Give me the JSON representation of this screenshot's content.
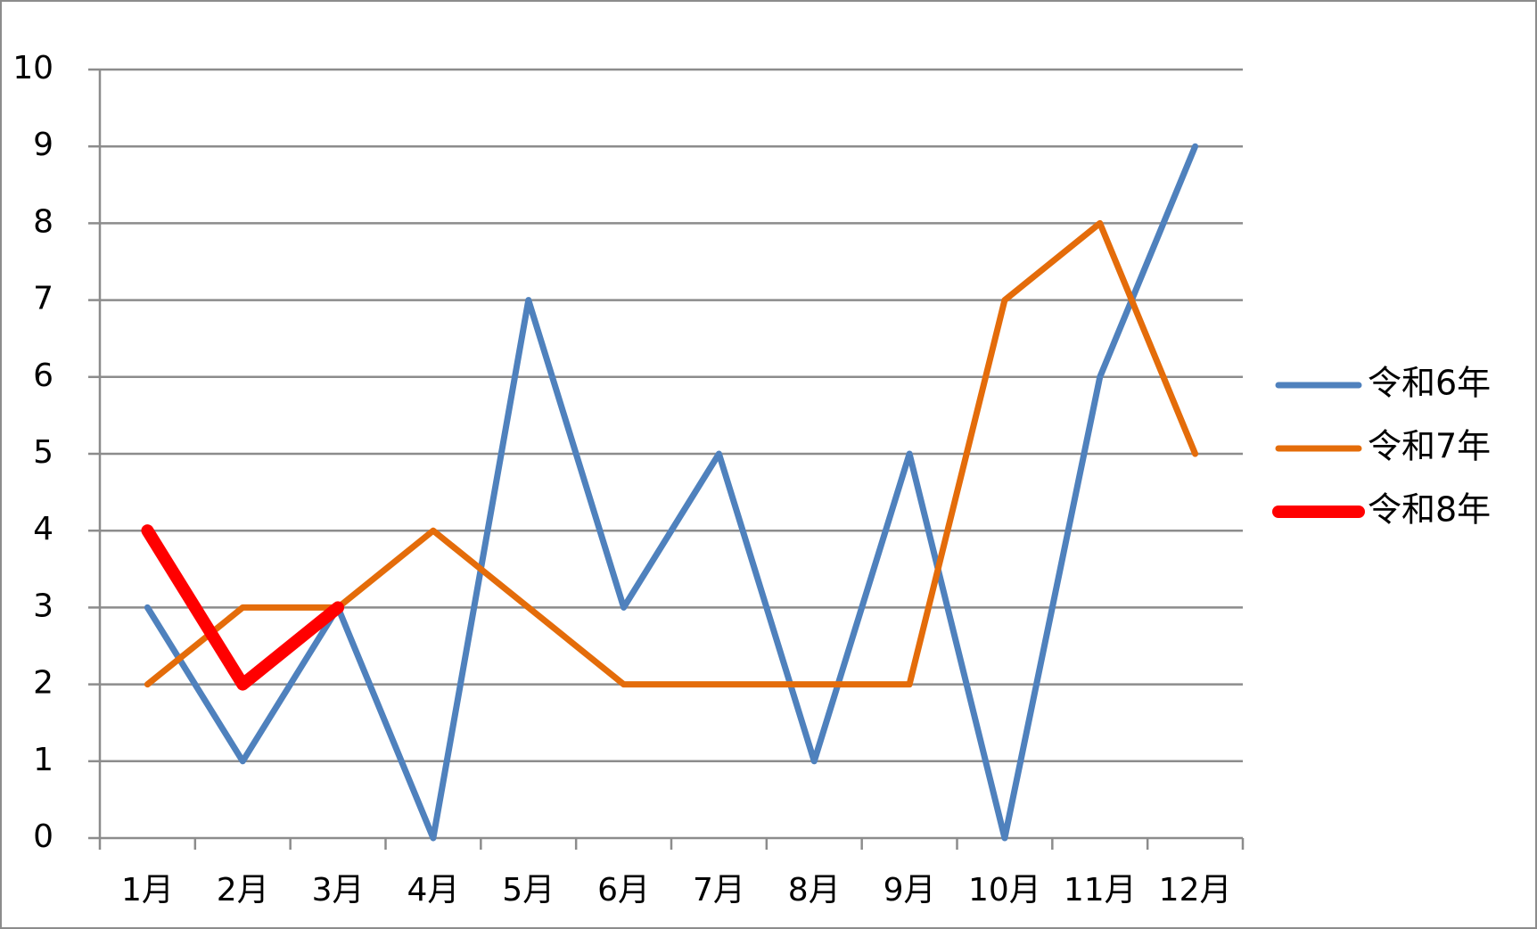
{
  "chart_data": {
    "type": "line",
    "categories": [
      "1月",
      "2月",
      "3月",
      "4月",
      "5月",
      "6月",
      "7月",
      "8月",
      "9月",
      "10月",
      "11月",
      "12月"
    ],
    "series": [
      {
        "name": "令和6年",
        "color": "#4f81bd",
        "values": [
          3,
          1,
          3,
          0,
          7,
          3,
          5,
          1,
          5,
          0,
          6,
          9
        ]
      },
      {
        "name": "令和7年",
        "color": "#e46c0a",
        "values": [
          2,
          3,
          3,
          4,
          3,
          2,
          2,
          2,
          2,
          7,
          8,
          5
        ]
      },
      {
        "name": "令和8年",
        "color": "#ff0000",
        "values": [
          4,
          2,
          3,
          null,
          null,
          null,
          null,
          null,
          null,
          null,
          null,
          null
        ]
      }
    ],
    "ylim": [
      0,
      10
    ],
    "yticks": [
      0,
      1,
      2,
      3,
      4,
      5,
      6,
      7,
      8,
      9,
      10
    ],
    "grid": true,
    "legend": "right"
  }
}
